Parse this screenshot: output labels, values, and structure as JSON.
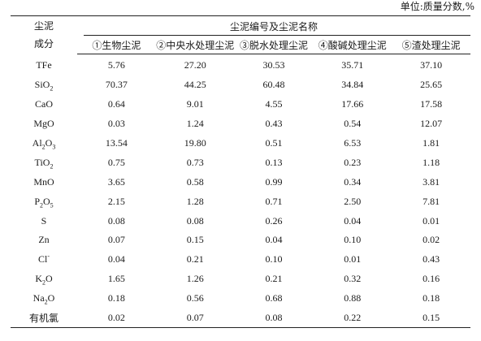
{
  "unit_note": "单位:质量分数,%",
  "header": {
    "row_head_line1": "尘泥",
    "row_head_line2": "成分",
    "group_title": "尘泥编号及尘泥名称",
    "columns": [
      "①生物尘泥",
      "②中央水处理尘泥",
      "③脱水处理尘泥",
      "④酸碱处理尘泥",
      "⑤渣处理尘泥"
    ]
  },
  "rows": [
    {
      "label": "TFe",
      "label_html": "TFe",
      "values": [
        "5.76",
        "27.20",
        "30.53",
        "35.71",
        "37.10"
      ]
    },
    {
      "label": "SiO2",
      "label_html": "SiO<sub>2</sub>",
      "values": [
        "70.37",
        "44.25",
        "60.48",
        "34.84",
        "25.65"
      ]
    },
    {
      "label": "CaO",
      "label_html": "CaO",
      "values": [
        "0.64",
        "9.01",
        "4.55",
        "17.66",
        "17.58"
      ]
    },
    {
      "label": "MgO",
      "label_html": "MgO",
      "values": [
        "0.03",
        "1.24",
        "0.43",
        "0.54",
        "12.07"
      ]
    },
    {
      "label": "Al2O3",
      "label_html": "Al<sub>2</sub>O<sub>3</sub>",
      "values": [
        "13.54",
        "19.80",
        "0.51",
        "6.53",
        "1.81"
      ]
    },
    {
      "label": "TiO2",
      "label_html": "TiO<sub>2</sub>",
      "values": [
        "0.75",
        "0.73",
        "0.13",
        "0.23",
        "1.18"
      ]
    },
    {
      "label": "MnO",
      "label_html": "MnO",
      "values": [
        "3.65",
        "0.58",
        "0.99",
        "0.34",
        "3.81"
      ]
    },
    {
      "label": "P2O5",
      "label_html": "P<sub>2</sub>O<sub>5</sub>",
      "values": [
        "2.15",
        "1.28",
        "0.71",
        "2.50",
        "7.81"
      ]
    },
    {
      "label": "S",
      "label_html": "S",
      "values": [
        "0.08",
        "0.08",
        "0.26",
        "0.04",
        "0.01"
      ]
    },
    {
      "label": "Zn",
      "label_html": "Zn",
      "values": [
        "0.07",
        "0.15",
        "0.04",
        "0.10",
        "0.02"
      ]
    },
    {
      "label": "Cl-",
      "label_html": "Cl<sup>-</sup>",
      "values": [
        "0.04",
        "0.21",
        "0.10",
        "0.01",
        "0.43"
      ]
    },
    {
      "label": "K2O",
      "label_html": "K<sub>2</sub>O",
      "values": [
        "1.65",
        "1.26",
        "0.21",
        "0.32",
        "0.16"
      ]
    },
    {
      "label": "Na2O",
      "label_html": "Na<sub>2</sub>O",
      "values": [
        "0.18",
        "0.56",
        "0.68",
        "0.88",
        "0.18"
      ]
    },
    {
      "label": "有机氯",
      "label_html": "有机氯",
      "values": [
        "0.02",
        "0.07",
        "0.08",
        "0.22",
        "0.15"
      ]
    }
  ]
}
